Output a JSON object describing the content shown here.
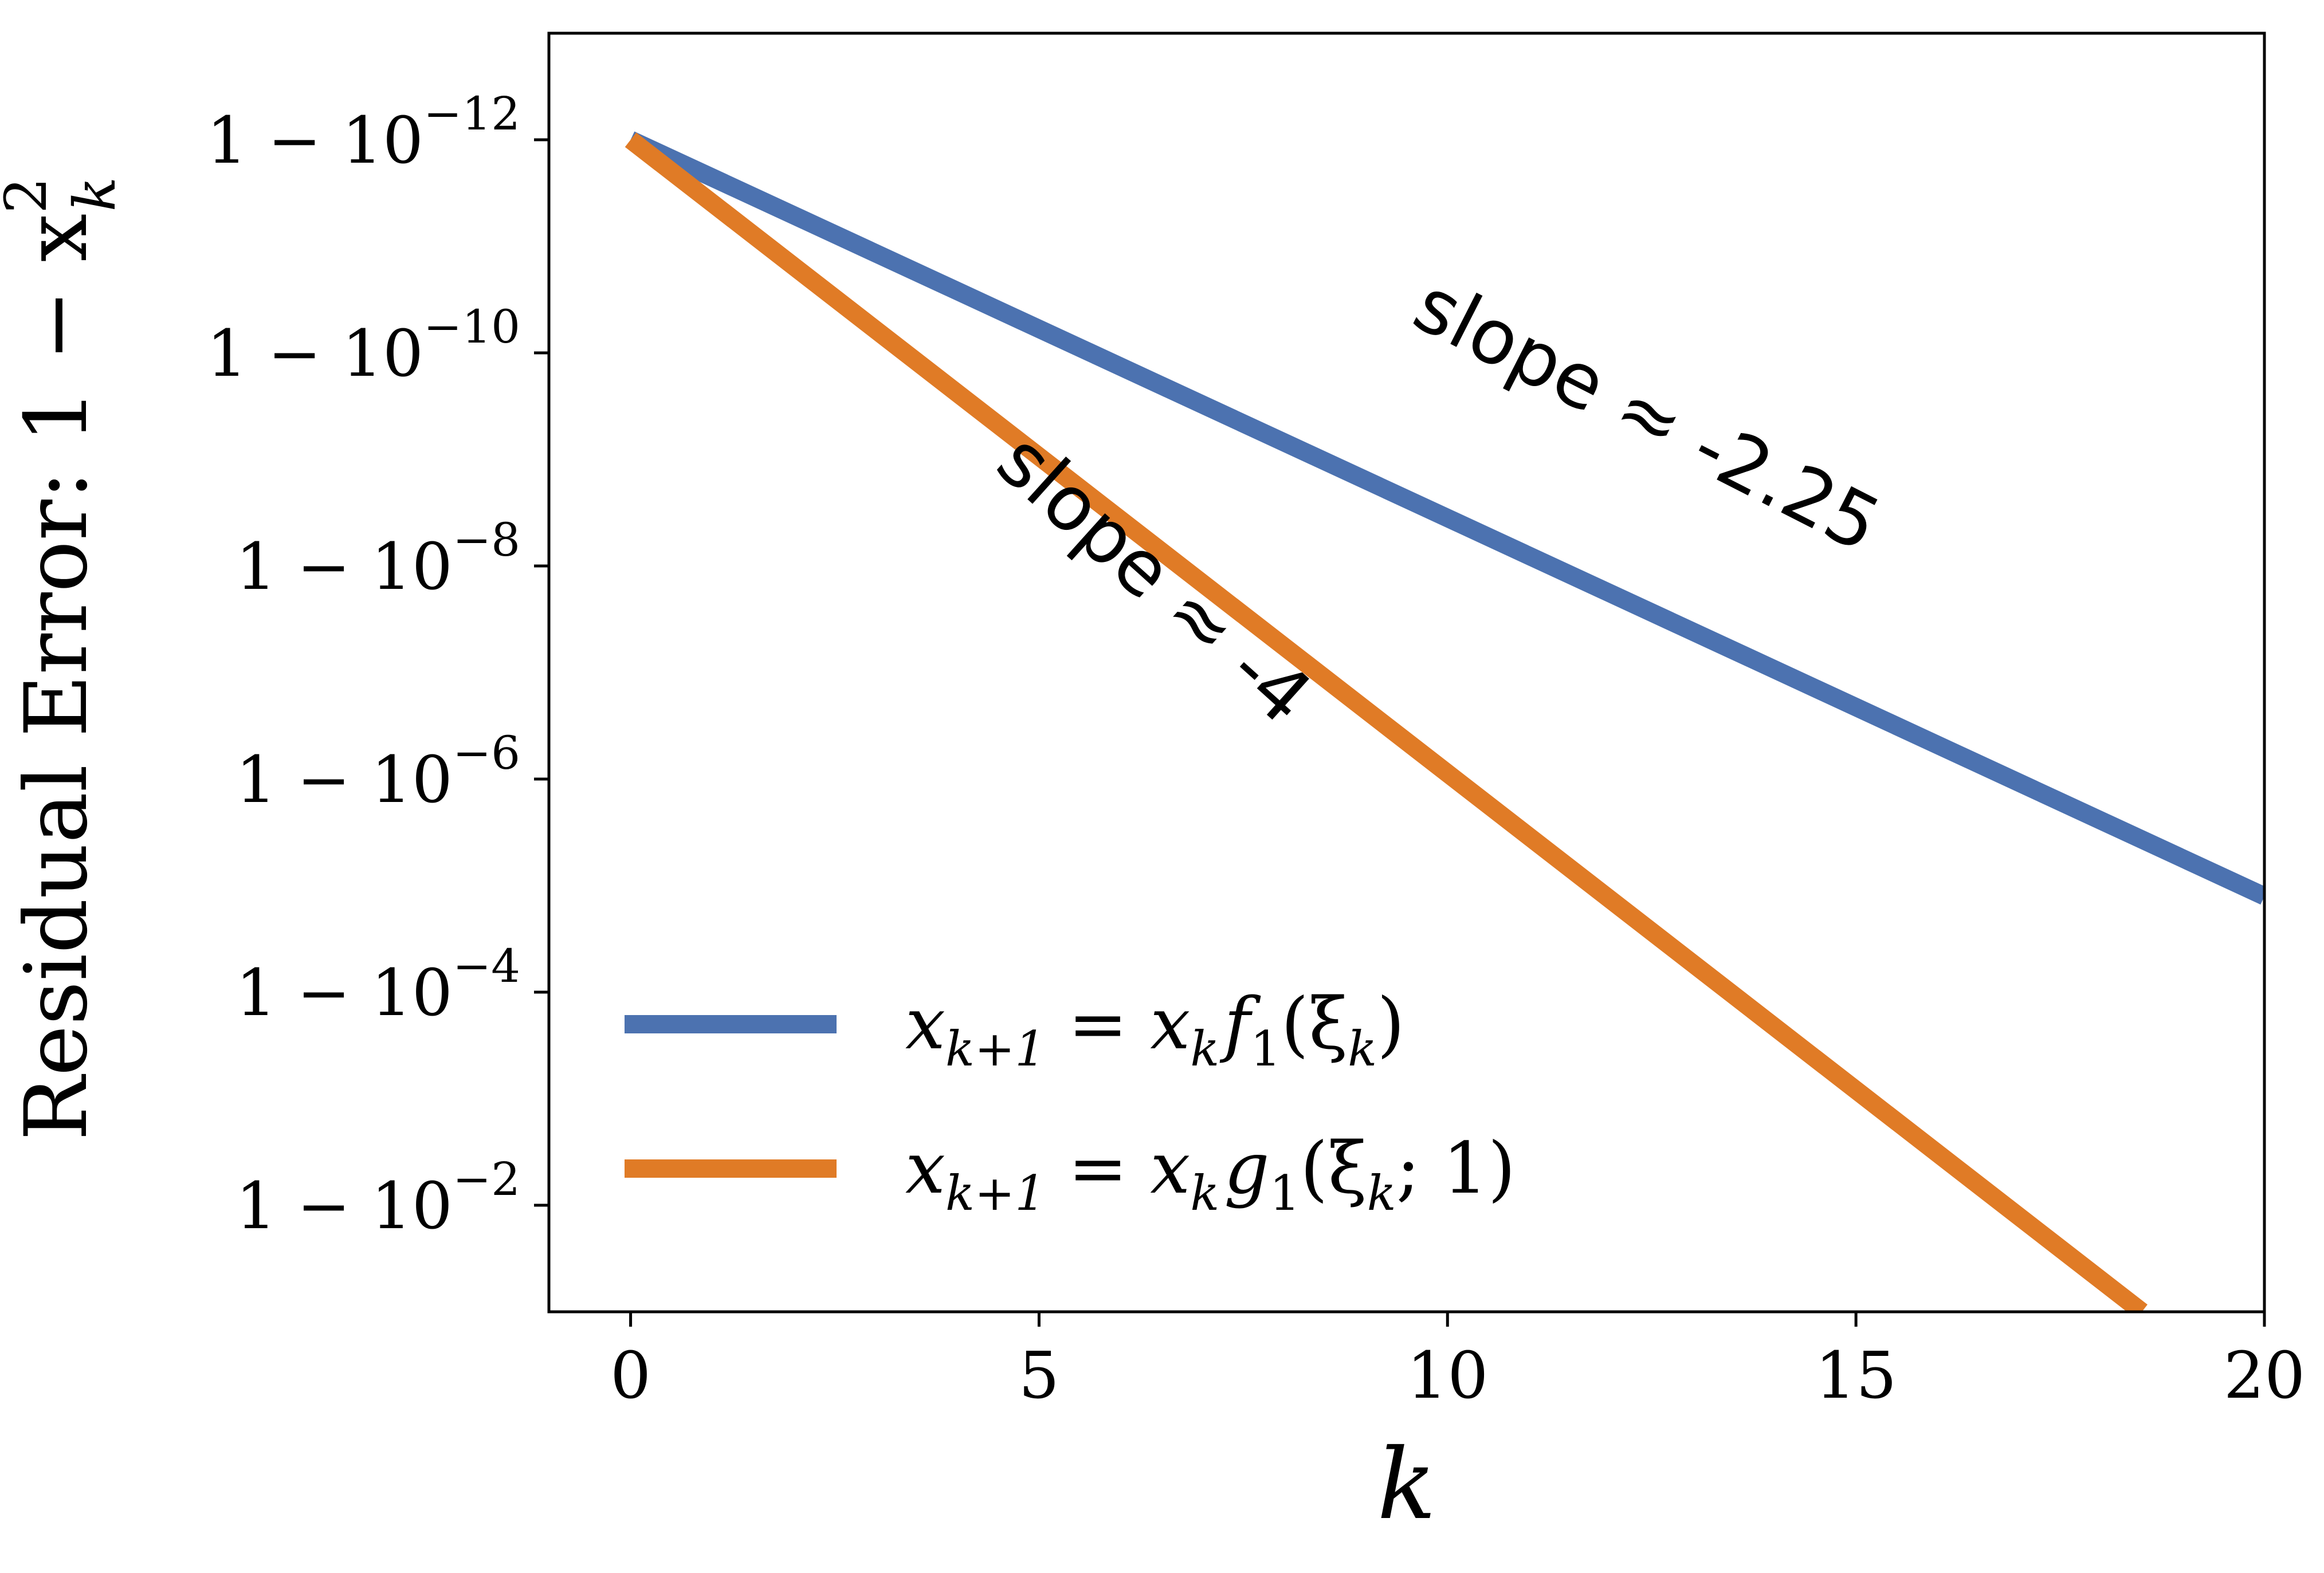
{
  "chart_data": {
    "type": "line",
    "xlabel": "k",
    "ylabel": "Residual Error: 1 − x",
    "ylabel_sup": "2",
    "ylabel_sub": "k",
    "x_ticks": [
      0,
      5,
      10,
      15,
      20
    ],
    "xlim": [
      -1,
      20
    ],
    "y_tick_base": "1 − 10",
    "y_ticks": [
      {
        "exp": "−12",
        "log_err": -12
      },
      {
        "exp": "−10",
        "log_err": -10
      },
      {
        "exp": "−8",
        "log_err": -8
      },
      {
        "exp": "−6",
        "log_err": -6
      },
      {
        "exp": "−4",
        "log_err": -4
      },
      {
        "exp": "−2",
        "log_err": -2
      }
    ],
    "ylim_log_err": [
      -13,
      -1
    ],
    "series": [
      {
        "name": "x_{k+1} = x_k f_1(ξ_k)",
        "legend_main": "x",
        "legend_sub1": "k+1",
        "legend_mid": " = x",
        "legend_sub2": "k",
        "legend_fn": "f",
        "legend_fn_sub": "1",
        "legend_tail": "(ξ",
        "legend_tail_sub": "k",
        "legend_end": ")",
        "color": "#4c72b0",
        "x": [
          0,
          20
        ],
        "log_err": [
          -12,
          -4.9
        ]
      },
      {
        "name": "x_{k+1} = x_k g_1(ξ_k; 1)",
        "legend_main": "x",
        "legend_sub1": "k+1",
        "legend_mid": " = x",
        "legend_sub2": "k",
        "legend_fn": "g",
        "legend_fn_sub": "1",
        "legend_tail": "(ξ",
        "legend_tail_sub": "k",
        "legend_end": "; 1)",
        "color": "#e07b26",
        "x": [
          0,
          18.5
        ],
        "log_err": [
          -12,
          -1
        ]
      }
    ],
    "annotations": [
      {
        "text": "slope ≈ -2.25",
        "x": 12.3,
        "log_err": -9.2,
        "angle": 27
      },
      {
        "text": "slope ≈ -4",
        "x": 6.2,
        "log_err": -7.7,
        "angle": 42
      }
    ],
    "legend_position": "lower-left",
    "grid": false
  }
}
